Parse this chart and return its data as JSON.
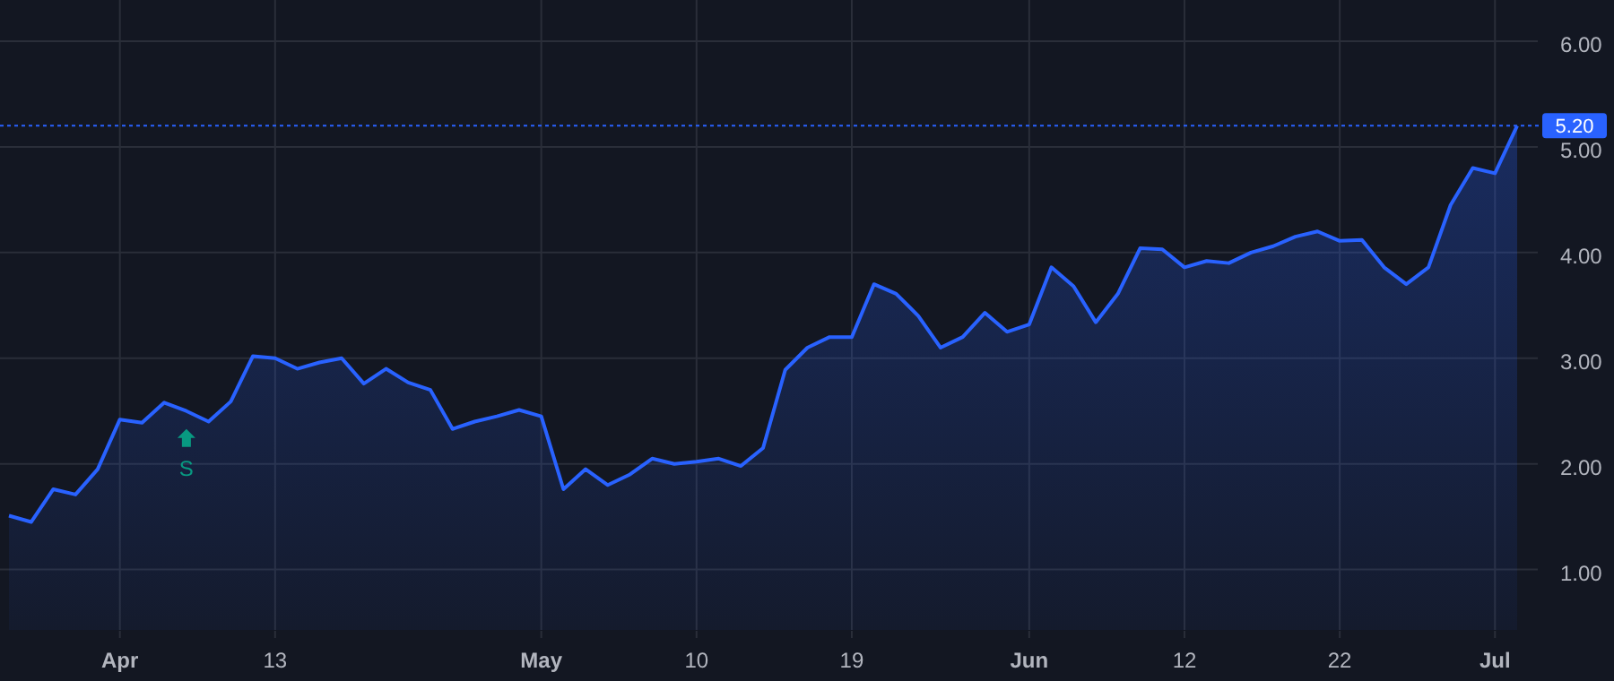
{
  "chart_data": {
    "type": "area",
    "categories": [
      null,
      null,
      null,
      null,
      null,
      "Apr",
      null,
      null,
      null,
      null,
      null,
      null,
      "13",
      null,
      null,
      null,
      null,
      null,
      null,
      null,
      null,
      null,
      null,
      null,
      "May",
      null,
      null,
      null,
      null,
      null,
      null,
      "10",
      null,
      null,
      null,
      null,
      null,
      null,
      "19",
      null,
      null,
      null,
      null,
      null,
      null,
      null,
      "Jun",
      null,
      null,
      null,
      null,
      null,
      null,
      "12",
      null,
      null,
      null,
      null,
      null,
      null,
      "22",
      null,
      null,
      null,
      null,
      null,
      null,
      "Jul",
      null
    ],
    "series": [
      {
        "color": "#2962ff",
        "values": [
          1.51,
          1.45,
          1.76,
          1.71,
          1.95,
          2.42,
          2.39,
          2.58,
          2.5,
          2.4,
          2.59,
          3.02,
          3.0,
          2.9,
          2.96,
          3.0,
          2.76,
          2.9,
          2.77,
          2.7,
          2.33,
          2.4,
          2.45,
          2.51,
          2.45,
          1.76,
          1.95,
          1.8,
          1.9,
          2.05,
          2.0,
          2.02,
          2.05,
          1.98,
          2.15,
          2.89,
          3.1,
          3.2,
          3.2,
          3.7,
          3.61,
          3.4,
          3.1,
          3.2,
          3.43,
          3.25,
          3.32,
          3.86,
          3.68,
          3.34,
          3.61,
          4.04,
          4.03,
          3.86,
          3.92,
          3.9,
          4.0,
          4.06,
          4.15,
          4.2,
          4.11,
          4.12,
          3.86,
          3.7,
          3.86,
          4.45,
          4.8,
          4.75,
          5.2
        ]
      }
    ],
    "ylim": [
      0.42,
      6.39
    ],
    "yticks": [
      {
        "value": 1,
        "label": "1.00"
      },
      {
        "value": 2,
        "label": "2.00"
      },
      {
        "value": 3,
        "label": "3.00"
      },
      {
        "value": 4,
        "label": "4.00"
      },
      {
        "value": 5,
        "label": "5.00"
      },
      {
        "value": 6,
        "label": "6.00"
      }
    ],
    "grid": true,
    "ref_lines": [
      {
        "axis": "y",
        "value": 5.2,
        "label": "5.20",
        "color": "#2962ff",
        "line_style": "dotted"
      }
    ],
    "annotations": [
      "S"
    ]
  }
}
